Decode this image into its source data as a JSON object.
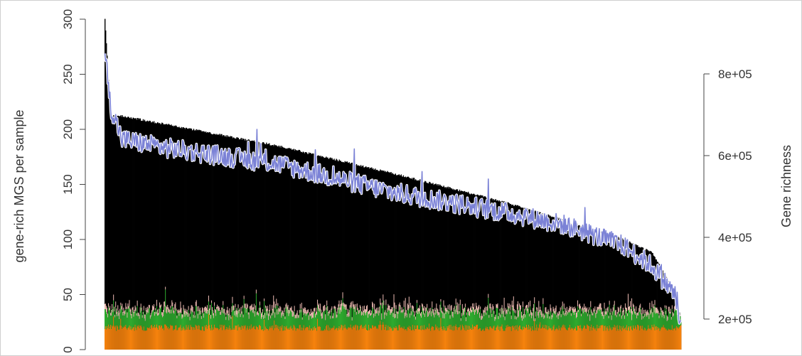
{
  "chart_data": {
    "type": "bar",
    "description_type": "stacked bar with overlaid line on secondary axis",
    "ylabel": "gene-rich MGS per sample",
    "y2label": "Gene richness",
    "ylim": [
      0,
      300
    ],
    "y2lim": [
      150000,
      900000
    ],
    "yticks": [
      "0",
      "50",
      "100",
      "150",
      "200",
      "250",
      "300"
    ],
    "y2ticks": [
      "2e+05",
      "4e+05",
      "6e+05",
      "8e+05"
    ],
    "y2tick_values": [
      200000,
      400000,
      600000,
      800000
    ],
    "samples": 800,
    "sorted_by": "total gene-rich MGS (descending)",
    "total_profile": {
      "x_fraction": [
        0,
        0.01,
        0.03,
        0.1,
        0.3,
        0.5,
        0.7,
        0.8,
        0.9,
        0.95,
        0.97,
        0.99,
        1.0
      ],
      "values": [
        300,
        212,
        212,
        205,
        185,
        160,
        133,
        117,
        100,
        88,
        70,
        52,
        27
      ]
    },
    "series": [
      {
        "name": "",
        "color": "#f5820d",
        "mean": 20,
        "spread": 3
      },
      {
        "name": "",
        "color": "#2eaa2e",
        "mean": 13,
        "spread": 5
      },
      {
        "name": "",
        "color": "#e9b8b0",
        "mean": 4,
        "spread": 2
      },
      {
        "name": "",
        "color": "#000000",
        "note": "remainder to total"
      }
    ],
    "line": {
      "color": "#7b82d6",
      "start_value": 850000,
      "profile_x_fraction": [
        0,
        0.01,
        0.03,
        0.1,
        0.3,
        0.5,
        0.7,
        0.8,
        0.9,
        0.95,
        0.99,
        1.0
      ],
      "profile_values": [
        850000,
        720000,
        640000,
        620000,
        580000,
        510000,
        460000,
        430000,
        380000,
        330000,
        260000,
        180000
      ],
      "noise": 25000
    },
    "grid": false,
    "legend": "none"
  }
}
